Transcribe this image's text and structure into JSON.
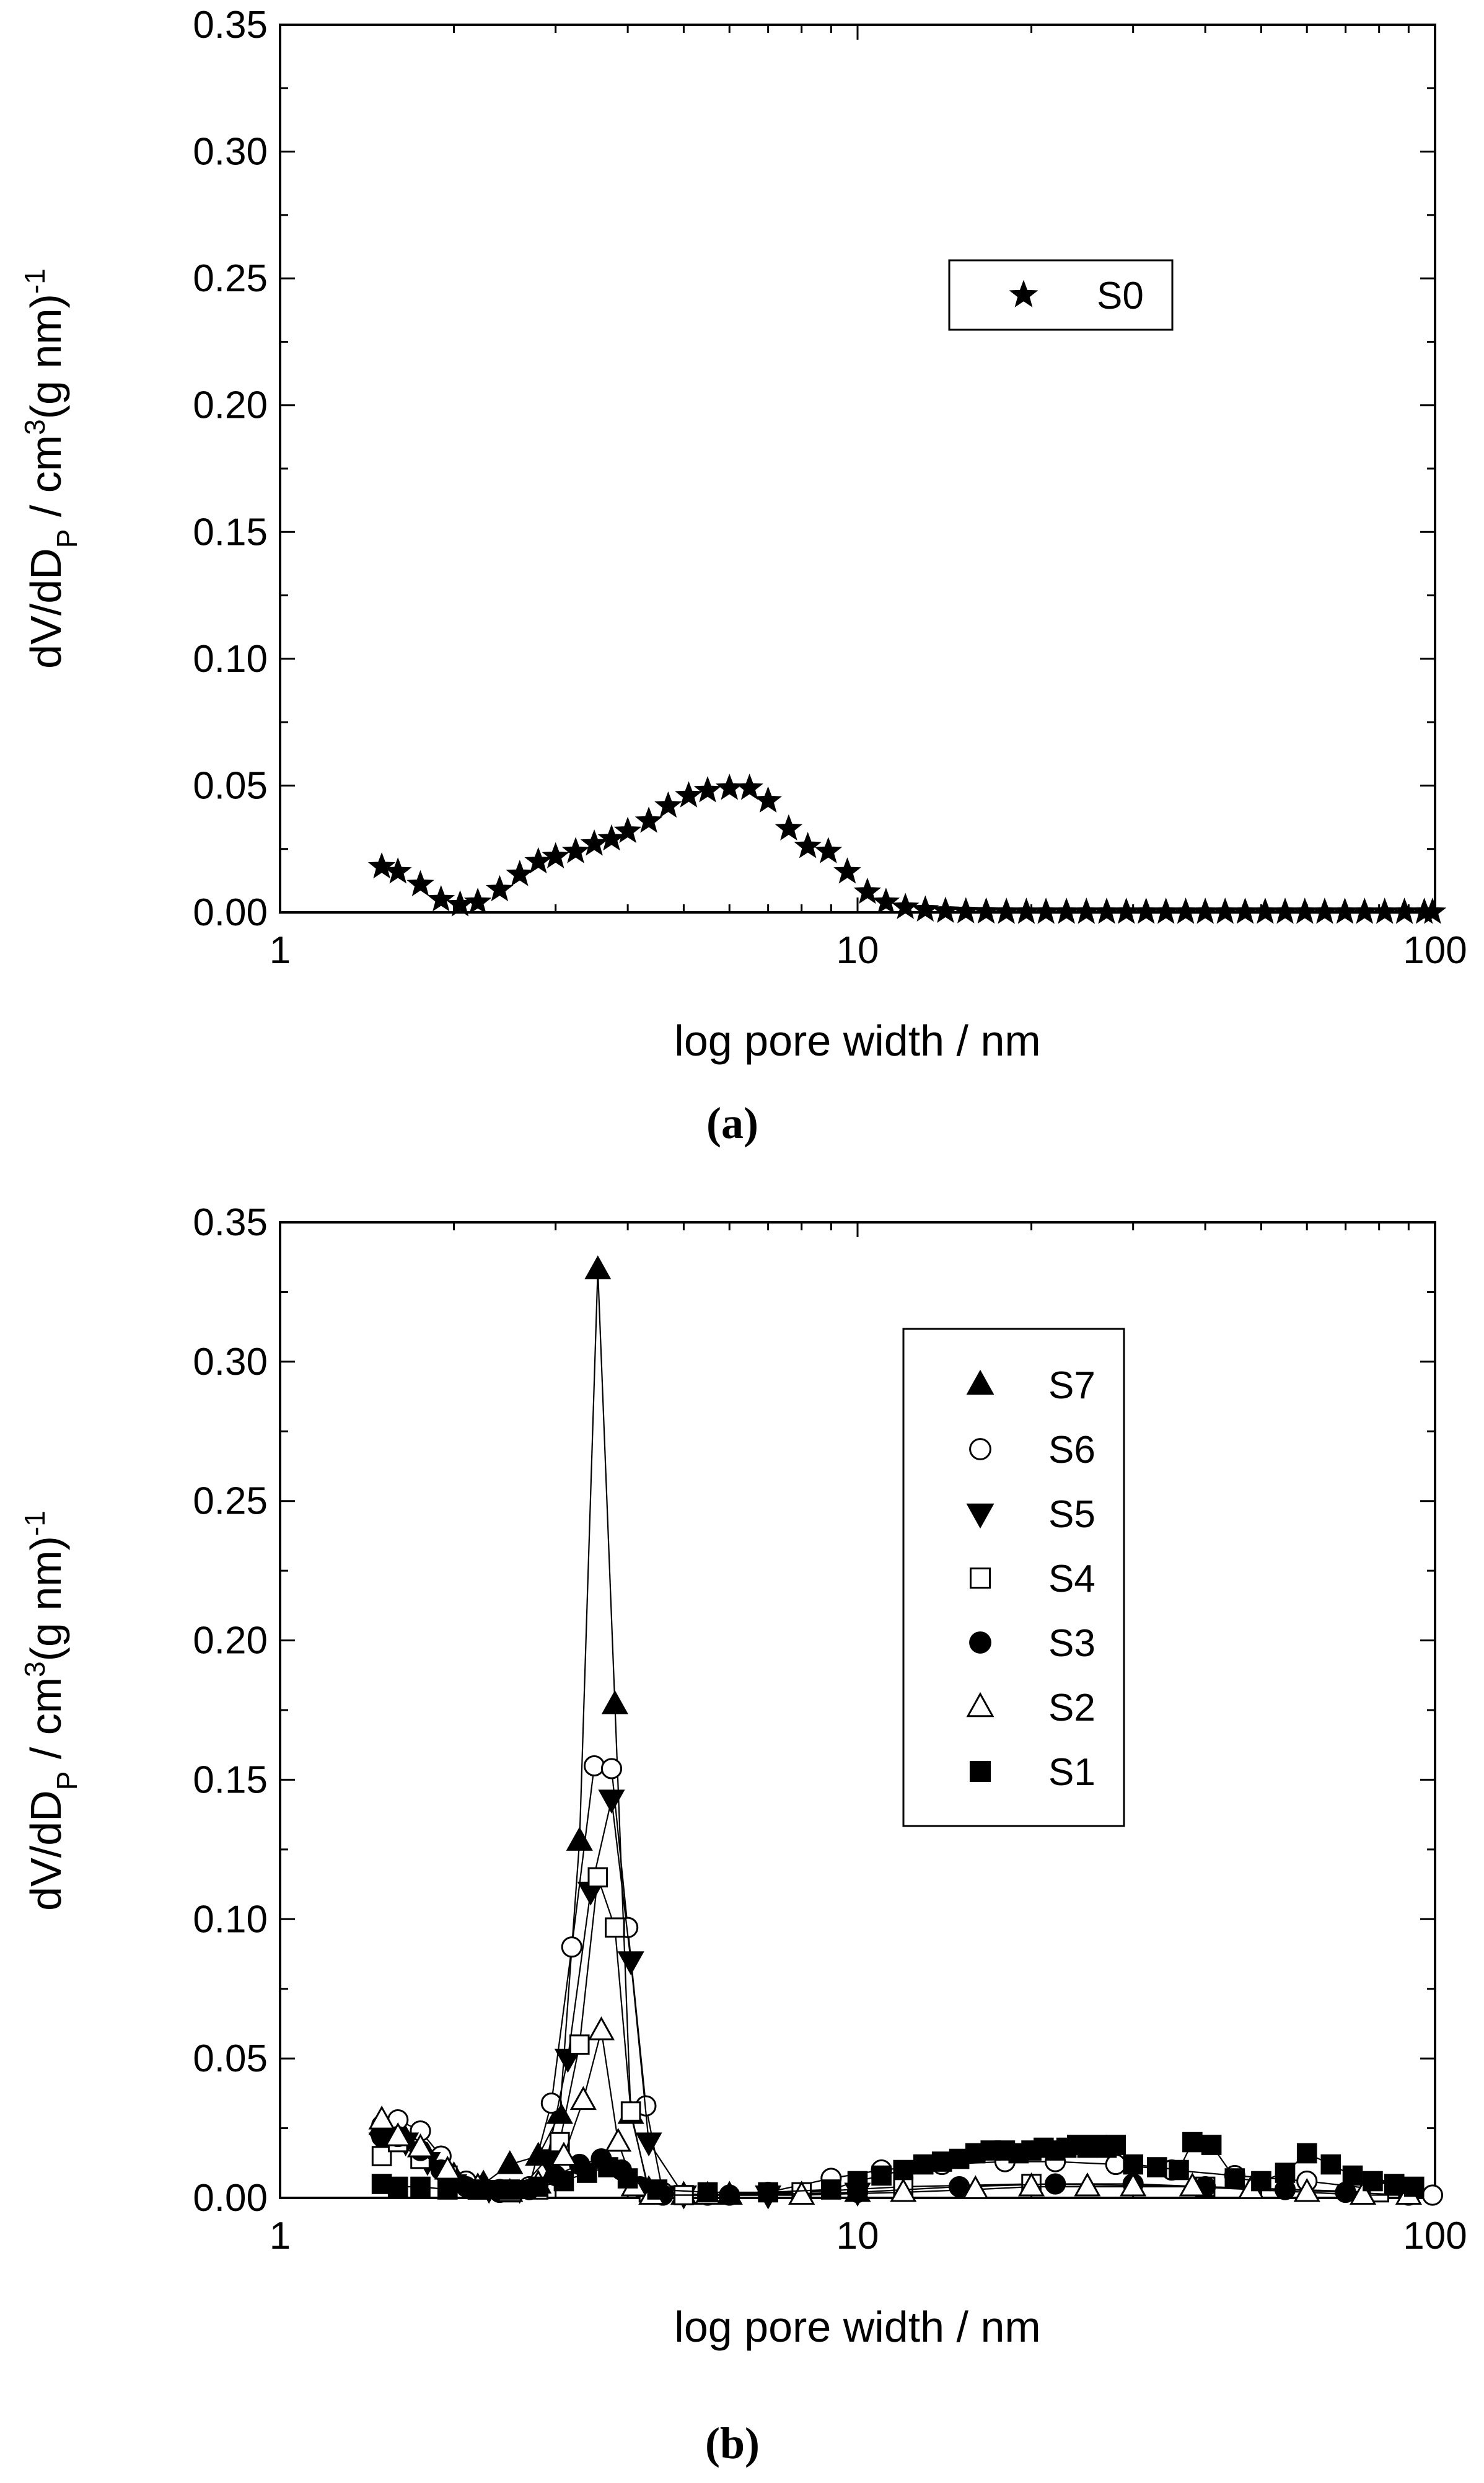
{
  "chart_data": [
    {
      "panel": "(a)",
      "type": "scatter",
      "xscale": "log",
      "xlim": [
        1,
        100
      ],
      "ylim": [
        0,
        0.35
      ],
      "xlabel": "log pore width / nm",
      "ylabel": "dV/dD_P / cm^3(g nm)^-1",
      "ylabel_parts": {
        "a": "dV/dD",
        "sub": "P",
        "b": " / cm",
        "sup1": "3",
        "c": "(g nm)",
        "sup2": "-1"
      },
      "xticks": [
        "1",
        "10",
        "100"
      ],
      "yticks": [
        "0.00",
        "0.05",
        "0.10",
        "0.15",
        "0.20",
        "0.25",
        "0.30",
        "0.35"
      ],
      "legend_position": "upper-right",
      "series": [
        {
          "name": "S0",
          "marker": "star",
          "line": false,
          "x": [
            1.5,
            1.6,
            1.75,
            1.9,
            2.05,
            2.2,
            2.4,
            2.6,
            2.8,
            3.0,
            3.25,
            3.5,
            3.75,
            4.0,
            4.35,
            4.7,
            5.1,
            5.5,
            6.0,
            6.5,
            7.0,
            7.6,
            8.2,
            8.9,
            9.6,
            10.4,
            11.2,
            12.1,
            13.1,
            14.2,
            15.4,
            16.7,
            18.1,
            19.6,
            21.2,
            23.0,
            24.9,
            27.0,
            29.2,
            31.6,
            34.2,
            37.0,
            40.0,
            43.3,
            46.9,
            50.8,
            55.0,
            59.5,
            64.4,
            69.8,
            75.5,
            81.8,
            88.5,
            95.8,
            99.0
          ],
          "y": [
            0.018,
            0.016,
            0.011,
            0.005,
            0.003,
            0.004,
            0.009,
            0.015,
            0.02,
            0.022,
            0.024,
            0.027,
            0.029,
            0.032,
            0.036,
            0.042,
            0.046,
            0.048,
            0.049,
            0.049,
            0.044,
            0.033,
            0.026,
            0.024,
            0.016,
            0.008,
            0.004,
            0.002,
            0.001,
            0.0005,
            0.0003,
            0.0002,
            0.0001,
            0.0001,
            0.0001,
            0.0001,
            0.0001,
            0.0001,
            0.0001,
            0.0001,
            0.0001,
            0.0001,
            0.0001,
            0.0001,
            0.0001,
            0.0001,
            0.0001,
            0.0001,
            0.0001,
            0.0001,
            0.0001,
            0.0001,
            0.0001,
            0.0001,
            0.0001
          ]
        }
      ]
    },
    {
      "panel": "(b)",
      "type": "line",
      "xscale": "log",
      "xlim": [
        1,
        100
      ],
      "ylim": [
        0,
        0.35
      ],
      "xlabel": "log pore width / nm",
      "ylabel": "dV/dD_P / cm^3(g nm)^-1",
      "ylabel_parts": {
        "a": "dV/dD",
        "sub": "P",
        "b": " / cm",
        "sup1": "3",
        "c": "(g nm)",
        "sup2": "-1"
      },
      "xticks": [
        "1",
        "10",
        "100"
      ],
      "yticks": [
        "0.00",
        "0.05",
        "0.10",
        "0.15",
        "0.20",
        "0.25",
        "0.30",
        "0.35"
      ],
      "legend_position": "upper-right",
      "series": [
        {
          "name": "S7",
          "marker": "triangle-up-filled",
          "x": [
            1.5,
            1.65,
            1.8,
            2.0,
            2.25,
            2.5,
            2.8,
            3.05,
            3.3,
            3.55,
            3.8,
            4.05,
            4.35,
            5.0,
            6.0,
            8.0,
            10.0
          ],
          "y": [
            0.026,
            0.021,
            0.015,
            0.008,
            0.005,
            0.012,
            0.015,
            0.03,
            0.128,
            0.333,
            0.177,
            0.03,
            0.003,
            0.001,
            0.001,
            0.001,
            0.002
          ]
        },
        {
          "name": "S6",
          "marker": "circle-open",
          "x": [
            1.5,
            1.6,
            1.75,
            1.9,
            2.1,
            2.4,
            2.7,
            2.95,
            3.2,
            3.5,
            3.75,
            4.0,
            4.3,
            4.6,
            5.5,
            7.0,
            9.0,
            11.0,
            14.0,
            18.0,
            22.0,
            28.0,
            35.0,
            45.0,
            60.0,
            80.0,
            99.0
          ],
          "y": [
            0.026,
            0.028,
            0.024,
            0.015,
            0.006,
            0.003,
            0.004,
            0.034,
            0.09,
            0.155,
            0.154,
            0.097,
            0.033,
            0.002,
            0.001,
            0.002,
            0.007,
            0.01,
            0.012,
            0.013,
            0.013,
            0.012,
            0.01,
            0.008,
            0.006,
            0.003,
            0.001
          ]
        },
        {
          "name": "S5",
          "marker": "triangle-down-filled",
          "x": [
            1.5,
            1.65,
            1.8,
            2.0,
            2.3,
            2.6,
            2.9,
            3.15,
            3.45,
            3.75,
            4.05,
            4.35,
            5.0,
            7.0,
            10.0
          ],
          "y": [
            0.02,
            0.02,
            0.013,
            0.005,
            0.003,
            0.003,
            0.014,
            0.05,
            0.11,
            0.143,
            0.085,
            0.02,
            0.001,
            0.001,
            0.002
          ]
        },
        {
          "name": "S4",
          "marker": "square-open",
          "x": [
            1.5,
            1.6,
            1.75,
            1.95,
            2.2,
            2.5,
            2.8,
            3.05,
            3.3,
            3.55,
            3.8,
            4.05,
            4.35,
            5.0,
            8.0,
            12.0,
            20.0,
            40.0,
            80.0
          ],
          "y": [
            0.015,
            0.02,
            0.014,
            0.008,
            0.003,
            0.002,
            0.003,
            0.02,
            0.055,
            0.115,
            0.097,
            0.031,
            0.002,
            0.001,
            0.002,
            0.004,
            0.005,
            0.004,
            0.002
          ]
        },
        {
          "name": "S3",
          "marker": "circle-filled",
          "x": [
            1.5,
            1.6,
            1.75,
            1.9,
            2.1,
            2.4,
            2.7,
            3.0,
            3.3,
            3.6,
            3.9,
            4.2,
            4.6,
            6.0,
            10.0,
            15.0,
            22.0,
            30.0,
            40.0,
            55.0,
            70.0,
            90.0
          ],
          "y": [
            0.022,
            0.022,
            0.017,
            0.01,
            0.004,
            0.002,
            0.003,
            0.008,
            0.012,
            0.014,
            0.01,
            0.004,
            0.001,
            0.001,
            0.002,
            0.004,
            0.005,
            0.005,
            0.004,
            0.003,
            0.002,
            0.001
          ]
        },
        {
          "name": "S2",
          "marker": "triangle-up-open",
          "x": [
            1.5,
            1.6,
            1.75,
            1.95,
            2.2,
            2.5,
            2.8,
            3.1,
            3.35,
            3.6,
            3.85,
            4.1,
            4.4,
            5.5,
            8.0,
            12.0,
            16.0,
            20.0,
            25.0,
            30.0,
            38.0,
            48.0,
            60.0,
            75.0,
            90.0
          ],
          "y": [
            0.028,
            0.022,
            0.018,
            0.01,
            0.004,
            0.002,
            0.005,
            0.015,
            0.035,
            0.06,
            0.02,
            0.004,
            0.001,
            0.001,
            0.001,
            0.002,
            0.003,
            0.004,
            0.004,
            0.004,
            0.004,
            0.003,
            0.002,
            0.001,
            0.001
          ]
        },
        {
          "name": "S1",
          "marker": "square-filled",
          "x": [
            1.5,
            1.6,
            1.75,
            1.95,
            2.2,
            2.5,
            2.8,
            3.1,
            3.4,
            3.7,
            4.0,
            4.5,
            5.5,
            7.0,
            9.0,
            10.0,
            11.0,
            12.0,
            13.0,
            14.0,
            15.0,
            16.0,
            17.0,
            18.0,
            19.0,
            20.0,
            21.0,
            22.0,
            23.0,
            24.0,
            25.0,
            26.0,
            27.0,
            28.0,
            30.0,
            33.0,
            36.0,
            38.0,
            41.0,
            45.0,
            50.0,
            55.0,
            60.0,
            66.0,
            72.0,
            78.0,
            85.0,
            92.0
          ],
          "y": [
            0.005,
            0.004,
            0.004,
            0.003,
            0.003,
            0.003,
            0.004,
            0.006,
            0.009,
            0.011,
            0.007,
            0.003,
            0.002,
            0.002,
            0.003,
            0.006,
            0.008,
            0.01,
            0.012,
            0.013,
            0.014,
            0.016,
            0.017,
            0.017,
            0.016,
            0.017,
            0.018,
            0.017,
            0.018,
            0.019,
            0.018,
            0.019,
            0.018,
            0.019,
            0.012,
            0.011,
            0.01,
            0.02,
            0.019,
            0.007,
            0.006,
            0.009,
            0.016,
            0.012,
            0.008,
            0.006,
            0.005,
            0.004
          ]
        }
      ]
    }
  ]
}
